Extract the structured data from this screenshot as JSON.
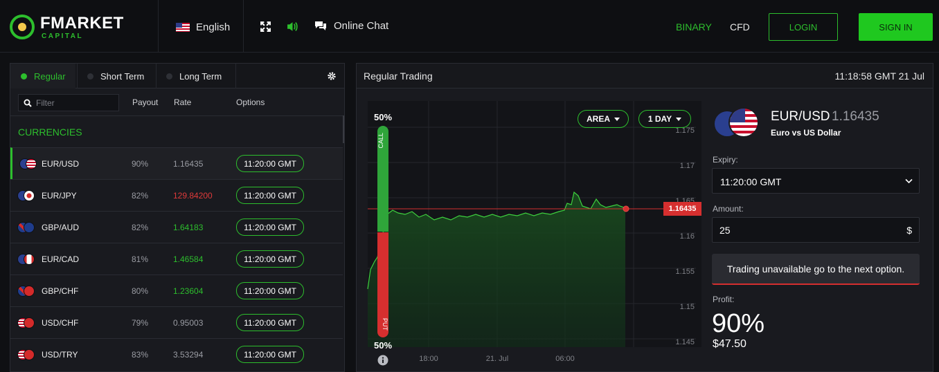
{
  "header": {
    "logo_main": "FMARKET",
    "logo_sub": "CAPITAL",
    "language": "English",
    "chat_label": "Online Chat",
    "nav": {
      "binary": "BINARY",
      "cfd": "CFD"
    },
    "login_label": "LOGIN",
    "signin_label": "SIGN IN",
    "accent_color": "#2dbf2d"
  },
  "left": {
    "tabs": [
      {
        "label": "Regular",
        "active": true
      },
      {
        "label": "Short Term",
        "active": false
      },
      {
        "label": "Long Term",
        "active": false
      }
    ],
    "filter_placeholder": "Filter",
    "columns": {
      "payout": "Payout",
      "rate": "Rate",
      "options": "Options"
    },
    "section": "CURRENCIES",
    "rows": [
      {
        "symbol": "EUR/USD",
        "payout": "90%",
        "rate": "1.16435",
        "trend": "flat",
        "option": "11:20:00 GMT",
        "flags": [
          "eu",
          "us"
        ]
      },
      {
        "symbol": "EUR/JPY",
        "payout": "82%",
        "rate": "129.84200",
        "trend": "down",
        "option": "11:20:00 GMT",
        "flags": [
          "eu",
          "jp"
        ]
      },
      {
        "symbol": "GBP/AUD",
        "payout": "82%",
        "rate": "1.64183",
        "trend": "up",
        "option": "11:20:00 GMT",
        "flags": [
          "gb",
          "au"
        ]
      },
      {
        "symbol": "EUR/CAD",
        "payout": "81%",
        "rate": "1.46584",
        "trend": "up",
        "option": "11:20:00 GMT",
        "flags": [
          "eu",
          "ca"
        ]
      },
      {
        "symbol": "GBP/CHF",
        "payout": "80%",
        "rate": "1.23604",
        "trend": "up",
        "option": "11:20:00 GMT",
        "flags": [
          "gb",
          "ch"
        ]
      },
      {
        "symbol": "USD/CHF",
        "payout": "79%",
        "rate": "0.95003",
        "trend": "flat",
        "option": "11:20:00 GMT",
        "flags": [
          "us",
          "ch"
        ]
      },
      {
        "symbol": "USD/TRY",
        "payout": "83%",
        "rate": "3.53294",
        "trend": "flat",
        "option": "11:20:00 GMT",
        "flags": [
          "us",
          "tr"
        ]
      }
    ]
  },
  "right": {
    "title": "Regular Trading",
    "time": "11:18:58 GMT 21 Jul",
    "chart": {
      "type_label": "AREA",
      "range_label": "1 DAY",
      "call_pct": "50%",
      "put_pct": "50%",
      "call_label": "CALL",
      "put_label": "PUT",
      "current_price": "1.16435",
      "y_ticks": [
        "1.175",
        "1.17",
        "1.165",
        "1.16",
        "1.155",
        "1.15",
        "1.145"
      ],
      "x_ticks": [
        "18:00",
        "21. Jul",
        "06:00"
      ]
    },
    "asset": {
      "symbol": "EUR/USD",
      "rate": "1.16435",
      "description": "Euro vs US Dollar"
    },
    "expiry_label": "Expiry:",
    "expiry_value": "11:20:00 GMT",
    "amount_label": "Amount:",
    "amount_value": "25",
    "currency": "$",
    "unavailable_label": "Trading unavailable go to the next option.",
    "profit_label": "Profit:",
    "profit_pct": "90%",
    "profit_amount": "$47.50"
  }
}
